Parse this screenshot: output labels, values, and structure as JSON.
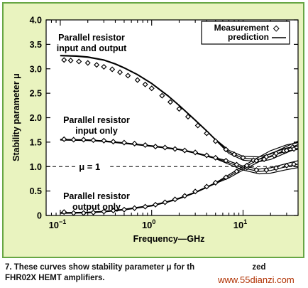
{
  "figure": {
    "caption": "7. These curves show stability parameter μ for th... zed FHR02X HEMT amplifiers.",
    "caption_line1": "7. These curves show stability parameter μ for th",
    "caption_line1_tail": "zed",
    "caption_line2": "FHR02X HEMT amplifiers.",
    "watermark": "www.55dianzi.com"
  },
  "colors": {
    "frame_bg": "#e9f3bf",
    "frame_border": "#67a644",
    "plot_bg": "#ffffff",
    "ink": "#000000"
  },
  "chart_data": {
    "type": "line",
    "xlabel": "Frequency—GHz",
    "ylabel": "Stability parameter μ",
    "x_scale": "log",
    "xlim": [
      0.07,
      40
    ],
    "ylim": [
      0,
      4.0
    ],
    "y_ticks": [
      "0",
      "0.5",
      "1.0",
      "1.5",
      "2.0",
      "2.5",
      "3.0",
      "3.5",
      "4.0"
    ],
    "x_ticks": [
      {
        "base": "10",
        "exp": "−1",
        "value": 0.1
      },
      {
        "base": "10",
        "exp": "0",
        "value": 1
      },
      {
        "base": "10",
        "exp": "1",
        "value": 10
      }
    ],
    "legend": {
      "position": "top-right",
      "entries": [
        "Measurement",
        "prediction"
      ],
      "marker_symbol": "◇"
    },
    "reference_line": {
      "y": 1.0,
      "label": "μ = 1",
      "style": "dashed"
    },
    "annotations": [
      {
        "line1": "Parallel resistor",
        "line2": "input and output"
      },
      {
        "line1": "Parallel resistor",
        "line2": "input only"
      },
      {
        "line1": "Parallel resistor",
        "line2": "output only"
      }
    ],
    "series": [
      {
        "curve": "input-and-output",
        "prediction": [
          [
            0.1,
            3.27
          ],
          [
            0.15,
            3.26
          ],
          [
            0.2,
            3.24
          ],
          [
            0.3,
            3.18
          ],
          [
            0.4,
            3.1
          ],
          [
            0.5,
            3.02
          ],
          [
            0.7,
            2.88
          ],
          [
            1,
            2.7
          ],
          [
            1.5,
            2.45
          ],
          [
            2,
            2.25
          ],
          [
            3,
            1.95
          ],
          [
            4,
            1.73
          ],
          [
            5,
            1.55
          ],
          [
            7,
            1.3
          ],
          [
            10,
            1.17
          ],
          [
            15,
            1.15
          ],
          [
            20,
            1.2
          ],
          [
            30,
            1.35
          ],
          [
            40,
            1.45
          ]
        ],
        "measurement": [
          [
            0.11,
            3.18
          ],
          [
            0.13,
            3.17
          ],
          [
            0.16,
            3.15
          ],
          [
            0.2,
            3.12
          ],
          [
            0.25,
            3.08
          ],
          [
            0.3,
            3.04
          ],
          [
            0.37,
            2.99
          ],
          [
            0.45,
            2.93
          ],
          [
            0.55,
            2.86
          ],
          [
            0.7,
            2.77
          ],
          [
            0.85,
            2.68
          ],
          [
            1,
            2.6
          ],
          [
            1.3,
            2.45
          ],
          [
            1.6,
            2.32
          ],
          [
            2,
            2.18
          ],
          [
            2.5,
            2.02
          ],
          [
            3.2,
            1.84
          ],
          [
            4,
            1.68
          ],
          [
            5,
            1.52
          ],
          [
            6.5,
            1.35
          ],
          [
            8,
            1.25
          ],
          [
            10,
            1.18
          ],
          [
            13,
            1.13
          ],
          [
            17,
            1.15
          ],
          [
            22,
            1.22
          ],
          [
            28,
            1.32
          ],
          [
            35,
            1.4
          ]
        ]
      },
      {
        "curve": "input-only",
        "prediction": [
          [
            0.1,
            1.55
          ],
          [
            0.2,
            1.54
          ],
          [
            0.3,
            1.52
          ],
          [
            0.5,
            1.48
          ],
          [
            0.7,
            1.45
          ],
          [
            1,
            1.42
          ],
          [
            1.5,
            1.38
          ],
          [
            2,
            1.35
          ],
          [
            3,
            1.28
          ],
          [
            5,
            1.17
          ],
          [
            7,
            1.08
          ],
          [
            10,
            0.97
          ],
          [
            15,
            0.9
          ],
          [
            20,
            0.92
          ],
          [
            30,
            1.0
          ],
          [
            40,
            1.05
          ]
        ],
        "measurement": [
          [
            0.11,
            1.56
          ],
          [
            0.14,
            1.55
          ],
          [
            0.18,
            1.55
          ],
          [
            0.23,
            1.54
          ],
          [
            0.3,
            1.53
          ],
          [
            0.38,
            1.51
          ],
          [
            0.5,
            1.49
          ],
          [
            0.65,
            1.47
          ],
          [
            0.85,
            1.44
          ],
          [
            1.1,
            1.41
          ],
          [
            1.4,
            1.39
          ],
          [
            1.8,
            1.36
          ],
          [
            2.3,
            1.33
          ],
          [
            3,
            1.29
          ],
          [
            4,
            1.23
          ],
          [
            5,
            1.18
          ],
          [
            6.5,
            1.12
          ],
          [
            8.5,
            1.04
          ],
          [
            11,
            0.98
          ],
          [
            14,
            0.93
          ],
          [
            18,
            0.93
          ],
          [
            23,
            0.97
          ],
          [
            30,
            1.02
          ],
          [
            36,
            1.05
          ]
        ]
      },
      {
        "curve": "output-only",
        "prediction": [
          [
            0.1,
            0.05
          ],
          [
            0.2,
            0.06
          ],
          [
            0.3,
            0.08
          ],
          [
            0.5,
            0.12
          ],
          [
            0.7,
            0.16
          ],
          [
            1,
            0.2
          ],
          [
            1.5,
            0.28
          ],
          [
            2,
            0.35
          ],
          [
            3,
            0.47
          ],
          [
            5,
            0.66
          ],
          [
            7,
            0.8
          ],
          [
            10,
            0.97
          ],
          [
            15,
            1.15
          ],
          [
            20,
            1.27
          ],
          [
            30,
            1.38
          ],
          [
            40,
            1.42
          ]
        ],
        "measurement": [
          [
            0.11,
            0.07
          ],
          [
            0.14,
            0.05
          ],
          [
            0.18,
            0.05
          ],
          [
            0.23,
            0.06
          ],
          [
            0.3,
            0.08
          ],
          [
            0.38,
            0.1
          ],
          [
            0.5,
            0.12
          ],
          [
            0.65,
            0.15
          ],
          [
            0.85,
            0.18
          ],
          [
            1.1,
            0.22
          ],
          [
            1.4,
            0.27
          ],
          [
            1.8,
            0.33
          ],
          [
            2.3,
            0.4
          ],
          [
            3,
            0.49
          ],
          [
            4,
            0.59
          ],
          [
            5,
            0.67
          ],
          [
            6.5,
            0.78
          ],
          [
            8.5,
            0.9
          ],
          [
            11,
            1.02
          ],
          [
            14,
            1.12
          ],
          [
            18,
            1.2
          ],
          [
            23,
            1.27
          ],
          [
            30,
            1.33
          ],
          [
            36,
            1.36
          ]
        ]
      }
    ]
  }
}
